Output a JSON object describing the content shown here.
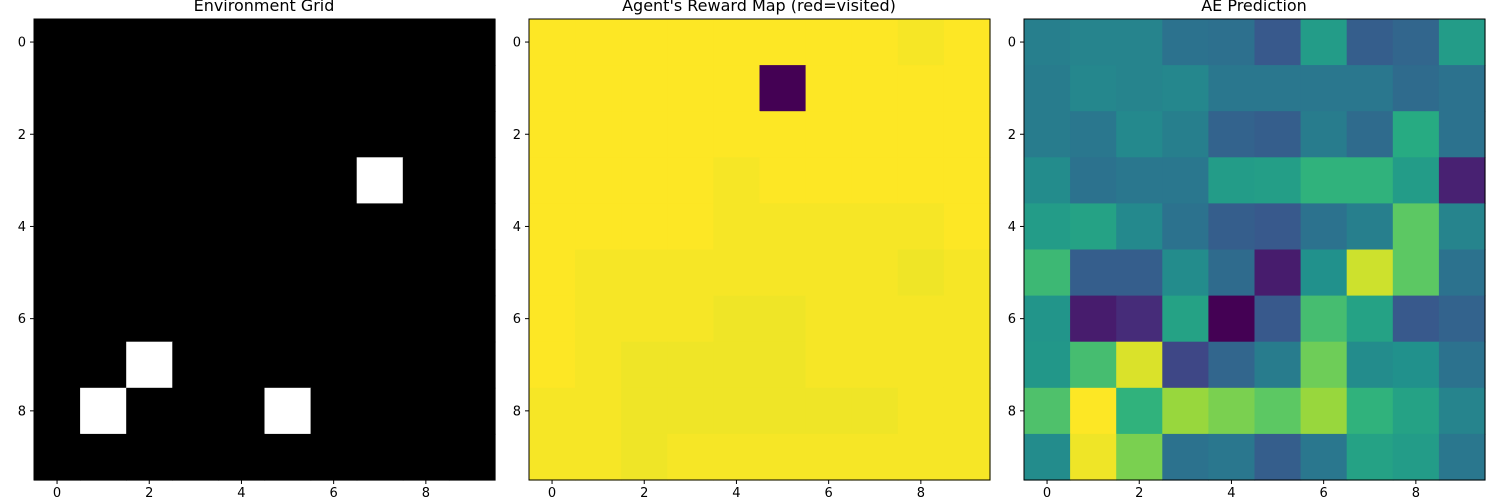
{
  "chart_data": [
    {
      "type": "heatmap",
      "title": "Environment Grid",
      "colormap": "gray",
      "rows": 10,
      "cols": 10,
      "xticks": [
        0,
        2,
        4,
        6,
        8
      ],
      "yticks": [
        0,
        2,
        4,
        6,
        8
      ],
      "values": [
        [
          0,
          0,
          0,
          0,
          0,
          0,
          0,
          0,
          0,
          0
        ],
        [
          0,
          0,
          0,
          0,
          0,
          0,
          0,
          0,
          0,
          0
        ],
        [
          0,
          0,
          0,
          0,
          0,
          0,
          0,
          0,
          0,
          0
        ],
        [
          0,
          0,
          0,
          0,
          0,
          0,
          0,
          1,
          0,
          0
        ],
        [
          0,
          0,
          0,
          0,
          0,
          0,
          0,
          0,
          0,
          0
        ],
        [
          0,
          0,
          0,
          0,
          0,
          0,
          0,
          0,
          0,
          0
        ],
        [
          0,
          0,
          0,
          0,
          0,
          0,
          0,
          0,
          0,
          0
        ],
        [
          0,
          0,
          1,
          0,
          0,
          0,
          0,
          0,
          0,
          0
        ],
        [
          0,
          1,
          0,
          0,
          0,
          1,
          0,
          0,
          0,
          0
        ],
        [
          0,
          0,
          0,
          0,
          0,
          0,
          0,
          0,
          0,
          0
        ]
      ]
    },
    {
      "type": "heatmap",
      "title": "Agent's Reward Map (red=visited)",
      "colormap": "viridis",
      "rows": 10,
      "cols": 10,
      "xticks": [
        0,
        2,
        4,
        6,
        8
      ],
      "yticks": [
        0,
        2,
        4,
        6,
        8
      ],
      "values": [
        [
          0.99,
          0.99,
          0.99,
          0.99,
          0.99,
          0.99,
          0.99,
          0.99,
          0.98,
          0.99
        ],
        [
          0.99,
          0.99,
          0.99,
          0.99,
          0.99,
          0.0,
          0.99,
          0.99,
          0.99,
          0.99
        ],
        [
          0.99,
          0.99,
          0.99,
          0.99,
          0.99,
          0.99,
          0.99,
          0.99,
          0.99,
          0.99
        ],
        [
          0.99,
          0.99,
          0.99,
          0.99,
          0.98,
          0.99,
          0.99,
          0.99,
          0.99,
          0.99
        ],
        [
          0.99,
          0.99,
          0.99,
          0.99,
          0.98,
          0.98,
          0.98,
          0.98,
          0.98,
          0.99
        ],
        [
          0.99,
          0.98,
          0.98,
          0.98,
          0.98,
          0.98,
          0.98,
          0.98,
          0.97,
          0.98
        ],
        [
          0.99,
          0.98,
          0.98,
          0.98,
          0.97,
          0.97,
          0.98,
          0.98,
          0.98,
          0.98
        ],
        [
          0.99,
          0.98,
          0.97,
          0.97,
          0.97,
          0.97,
          0.98,
          0.98,
          0.98,
          0.98
        ],
        [
          0.98,
          0.98,
          0.97,
          0.97,
          0.97,
          0.97,
          0.97,
          0.97,
          0.98,
          0.98
        ],
        [
          0.98,
          0.98,
          0.97,
          0.98,
          0.98,
          0.98,
          0.98,
          0.98,
          0.98,
          0.98
        ]
      ]
    },
    {
      "type": "heatmap",
      "title": "AE Prediction",
      "colormap": "viridis",
      "rows": 10,
      "cols": 10,
      "xticks": [
        0,
        2,
        4,
        6,
        8
      ],
      "yticks": [
        0,
        2,
        4,
        6,
        8
      ],
      "values": [
        [
          0.43,
          0.45,
          0.45,
          0.38,
          0.37,
          0.28,
          0.55,
          0.3,
          0.33,
          0.55
        ],
        [
          0.42,
          0.46,
          0.45,
          0.46,
          0.4,
          0.4,
          0.4,
          0.4,
          0.35,
          0.38
        ],
        [
          0.42,
          0.4,
          0.47,
          0.43,
          0.32,
          0.3,
          0.42,
          0.35,
          0.62,
          0.38
        ],
        [
          0.48,
          0.38,
          0.4,
          0.4,
          0.55,
          0.56,
          0.65,
          0.65,
          0.55,
          0.12
        ],
        [
          0.55,
          0.58,
          0.47,
          0.38,
          0.3,
          0.28,
          0.38,
          0.43,
          0.75,
          0.45
        ],
        [
          0.68,
          0.3,
          0.3,
          0.48,
          0.35,
          0.1,
          0.5,
          0.93,
          0.75,
          0.38
        ],
        [
          0.52,
          0.1,
          0.15,
          0.58,
          0.0,
          0.28,
          0.7,
          0.58,
          0.28,
          0.32
        ],
        [
          0.53,
          0.7,
          0.95,
          0.22,
          0.33,
          0.42,
          0.78,
          0.48,
          0.5,
          0.38
        ],
        [
          0.72,
          1.0,
          0.65,
          0.85,
          0.8,
          0.75,
          0.85,
          0.65,
          0.58,
          0.45
        ],
        [
          0.48,
          0.98,
          0.8,
          0.38,
          0.4,
          0.3,
          0.4,
          0.58,
          0.55,
          0.4
        ]
      ]
    }
  ]
}
